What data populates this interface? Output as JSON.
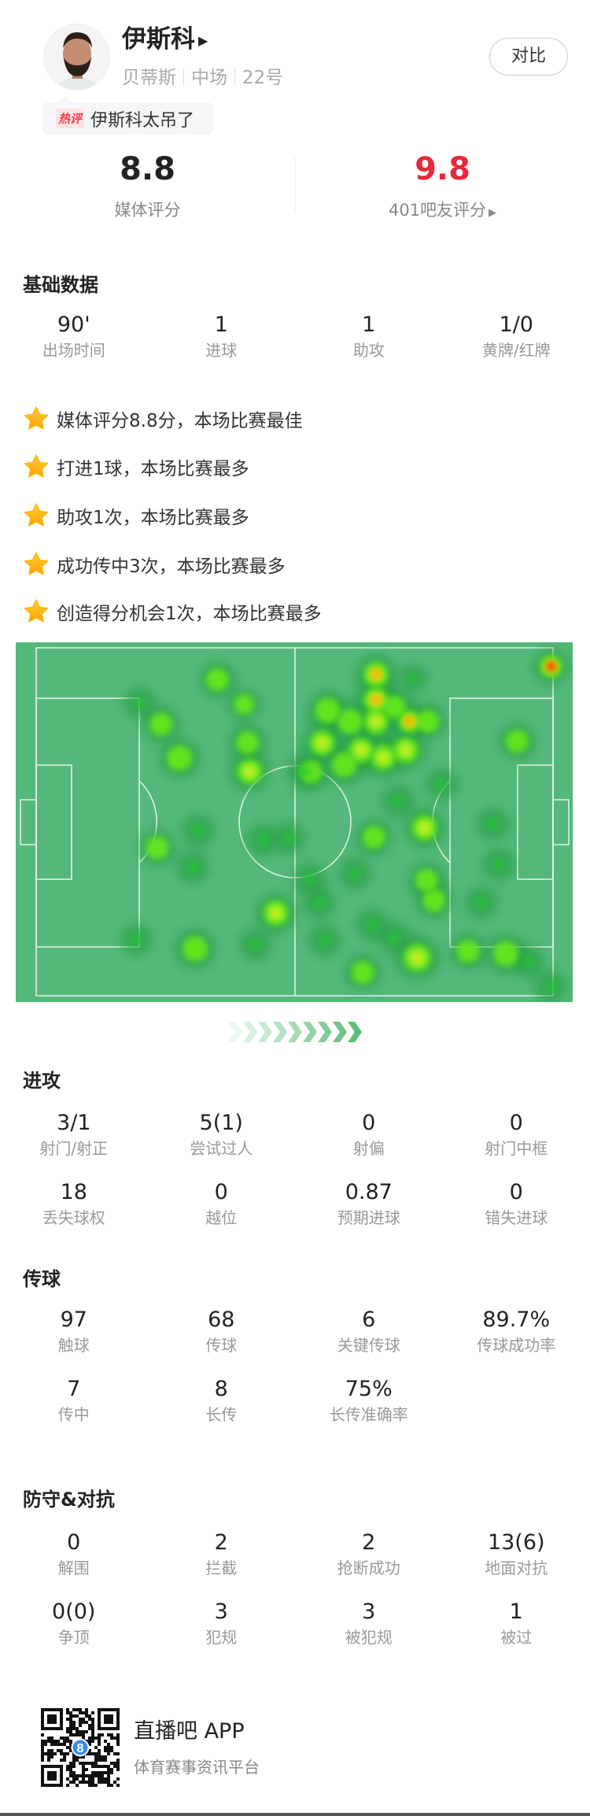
{
  "player": {
    "name": "伊斯科",
    "team": "贝蒂斯",
    "position": "中场",
    "number": "22号",
    "compare_label": "对比",
    "hot_tag": "热评",
    "hot_comment": "伊斯科太吊了"
  },
  "ratings": {
    "media": {
      "value": "8.8",
      "label": "媒体评分"
    },
    "fans": {
      "value": "9.8",
      "label": "401吧友评分"
    }
  },
  "basic": {
    "title": "基础数据",
    "stats": [
      {
        "value": "90'",
        "label": "出场时间"
      },
      {
        "value": "1",
        "label": "进球"
      },
      {
        "value": "1",
        "label": "助攻"
      },
      {
        "value": "1/0",
        "label": "黄牌/红牌"
      }
    ],
    "highlights": [
      "媒体评分8.8分，本场比赛最佳",
      "打进1球，本场比赛最多",
      "助攻1次，本场比赛最多",
      "成功传中3次，本场比赛最多",
      "创造得分机会1次，本场比赛最多"
    ]
  },
  "attack": {
    "title": "进攻",
    "stats": [
      {
        "value": "3/1",
        "label": "射门/射正"
      },
      {
        "value": "5(1)",
        "label": "尝试过人"
      },
      {
        "value": "0",
        "label": "射偏"
      },
      {
        "value": "0",
        "label": "射门中框"
      },
      {
        "value": "18",
        "label": "丢失球权"
      },
      {
        "value": "0",
        "label": "越位"
      },
      {
        "value": "0.87",
        "label": "预期进球"
      },
      {
        "value": "0",
        "label": "错失进球"
      }
    ]
  },
  "passing": {
    "title": "传球",
    "stats": [
      {
        "value": "97",
        "label": "触球"
      },
      {
        "value": "68",
        "label": "传球"
      },
      {
        "value": "6",
        "label": "关键传球"
      },
      {
        "value": "89.7%",
        "label": "传球成功率"
      },
      {
        "value": "7",
        "label": "传中"
      },
      {
        "value": "8",
        "label": "长传"
      },
      {
        "value": "75%",
        "label": "长传准确率"
      }
    ]
  },
  "defense": {
    "title": "防守&对抗",
    "stats": [
      {
        "value": "0",
        "label": "解围"
      },
      {
        "value": "2",
        "label": "拦截"
      },
      {
        "value": "2",
        "label": "抢断成功"
      },
      {
        "value": "13(6)",
        "label": "地面对抗"
      },
      {
        "value": "0(0)",
        "label": "争顶"
      },
      {
        "value": "3",
        "label": "犯规"
      },
      {
        "value": "3",
        "label": "被犯规"
      },
      {
        "value": "1",
        "label": "被过"
      }
    ]
  },
  "footer": {
    "app_name": "直播吧 APP",
    "slogan": "体育赛事资讯平台",
    "qr_badge": "8"
  },
  "colors": {
    "fan_rating": "#e8273a",
    "pitch": "#55b87a",
    "star": "#ffb400",
    "chevron": "#5cbf7c"
  },
  "icons": {
    "star": "star-icon",
    "arrow": "triangle-right-icon"
  }
}
